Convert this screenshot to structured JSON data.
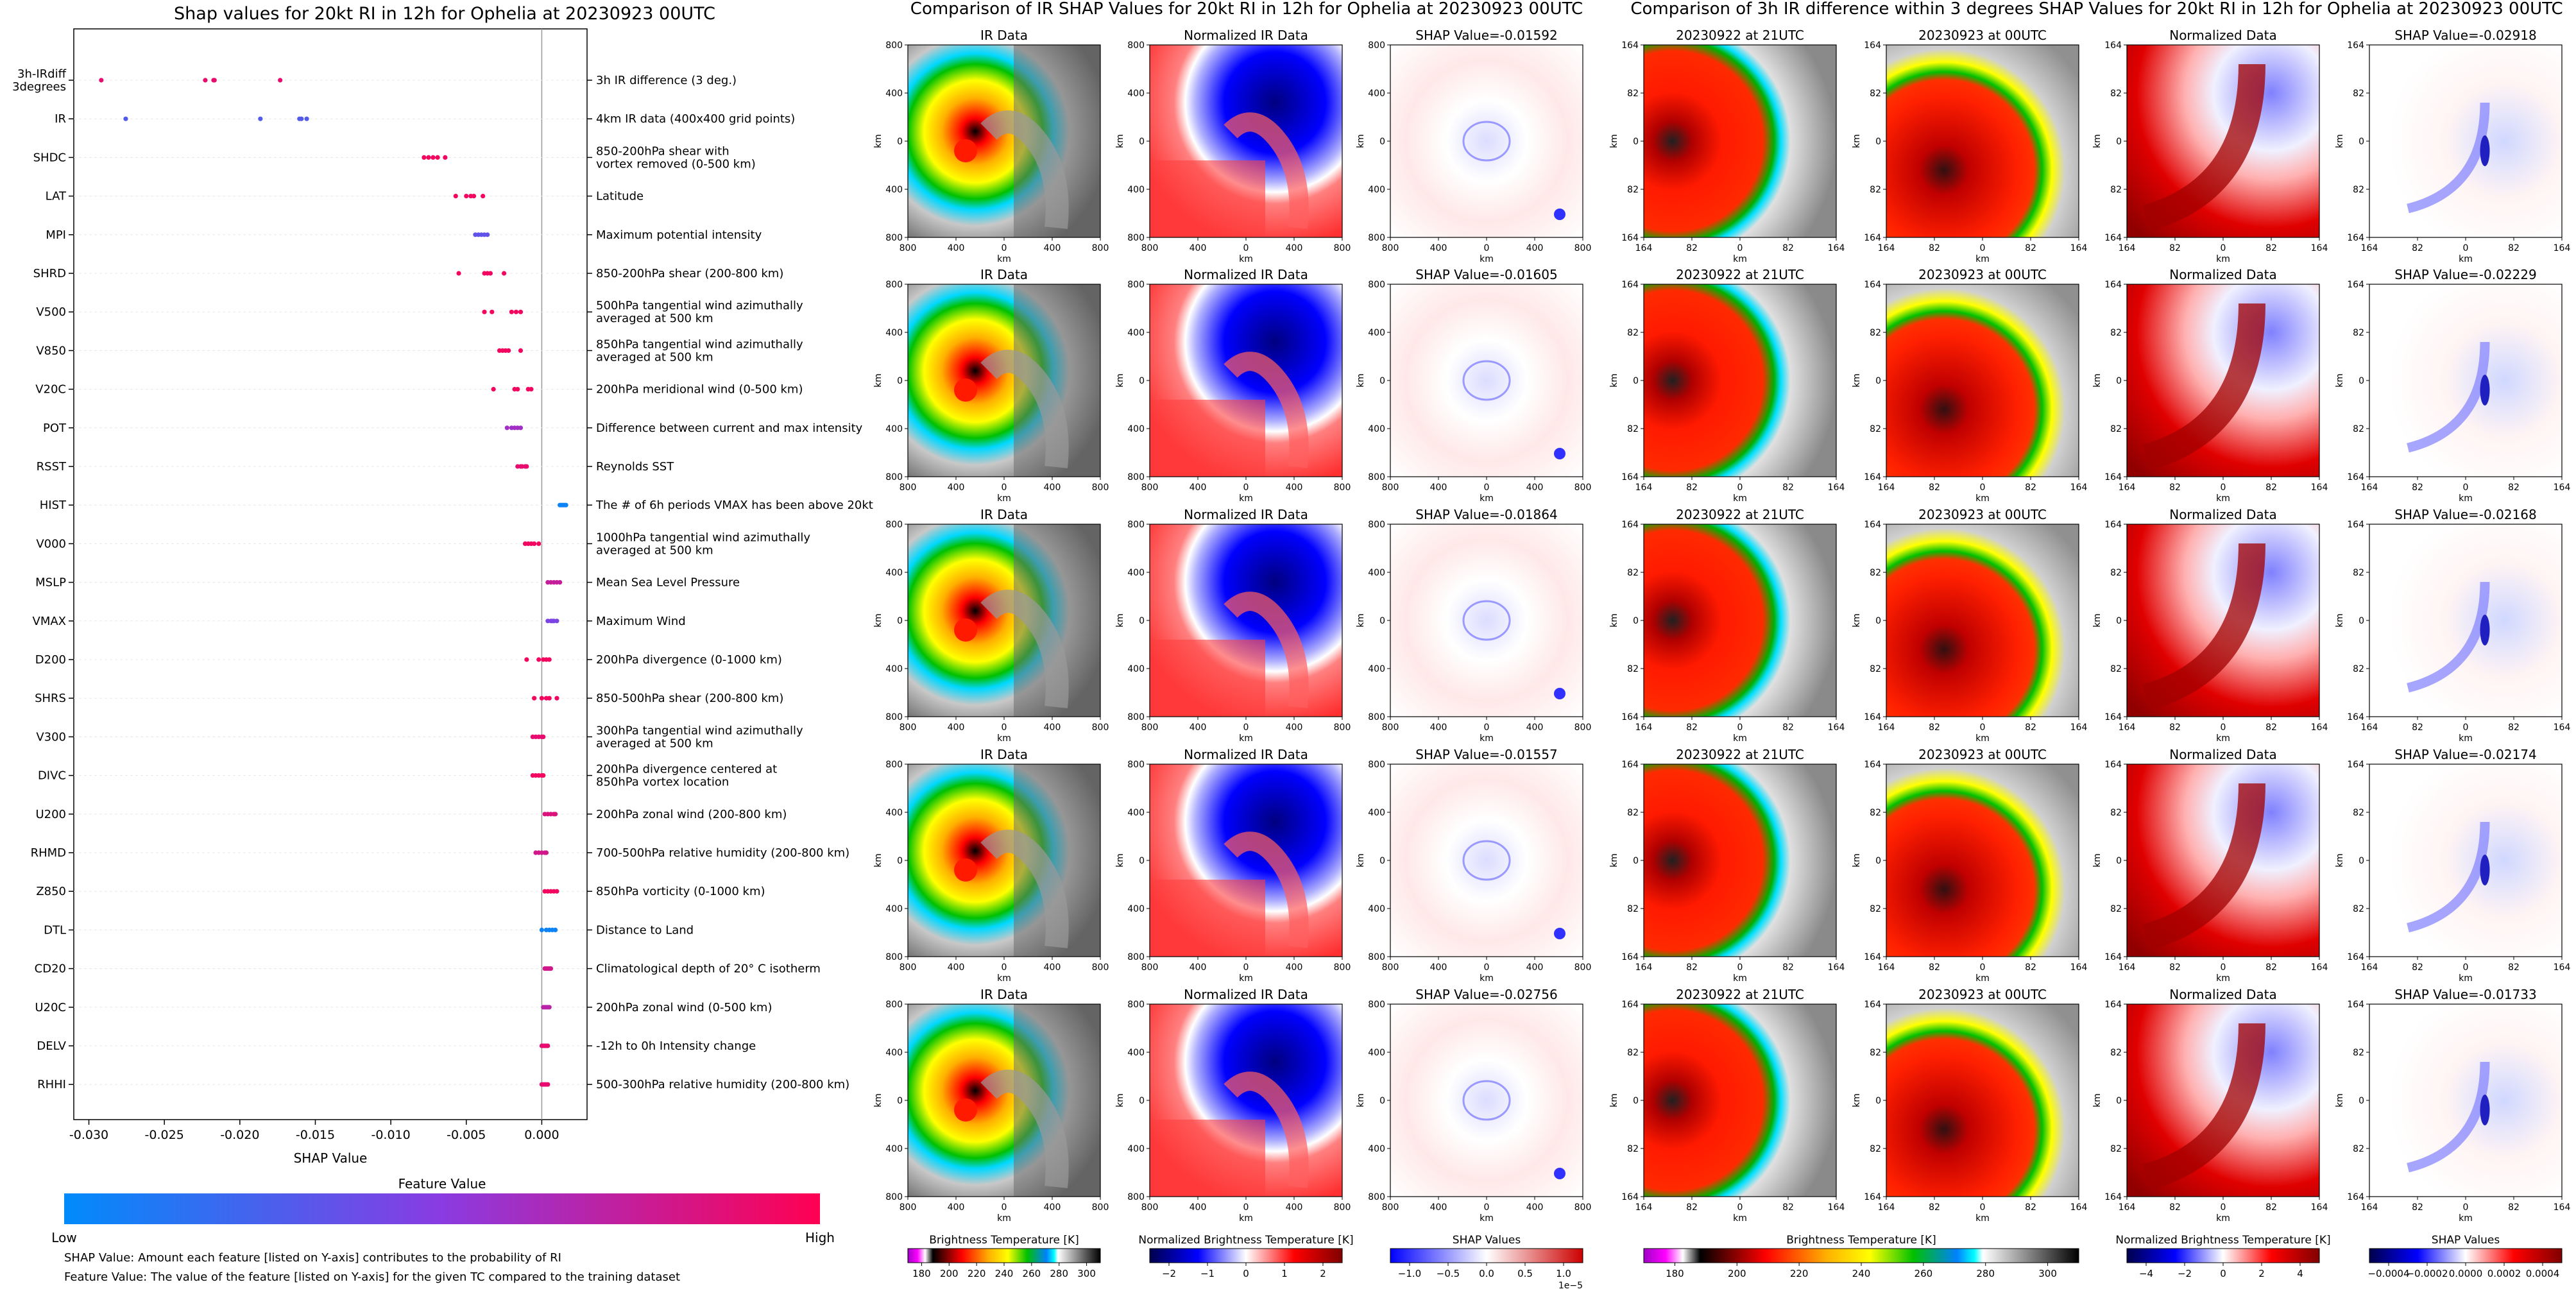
{
  "left_panel": {
    "title": "Shap values for 20kt RI in 12h for Ophelia at 20230923 00UTC",
    "xlabel": "SHAP Value",
    "xticks": [
      "-0.030",
      "-0.025",
      "-0.020",
      "-0.015",
      "-0.010",
      "-0.005",
      "0.000"
    ],
    "colorbar_title": "Feature Value",
    "colorbar_low": "Low",
    "colorbar_high": "High",
    "note1": "SHAP Value: Amount each feature [listed on Y-axis] contributes to the probability of RI",
    "note2": "Feature Value: The value of the feature [listed on Y-axis] for the given TC compared to the training dataset"
  },
  "mid_panel": {
    "title": "Comparison of IR SHAP Values for 20kt RI in 12h for Ophelia at 20230923 00UTC",
    "col_titles": [
      "IR Data",
      "Normalized IR Data"
    ],
    "shap_titles": [
      "SHAP Value=-0.01592",
      "SHAP Value=-0.01605",
      "SHAP Value=-0.01864",
      "SHAP Value=-0.01557",
      "SHAP Value=-0.02756"
    ],
    "xticks": [
      "800",
      "400",
      "0",
      "400",
      "800"
    ],
    "yticks": [
      "800",
      "400",
      "0",
      "400",
      "800"
    ],
    "axis_label": "km",
    "cbar1_label": "Brightness Temperature [K]",
    "cbar1_ticks": [
      "180",
      "200",
      "220",
      "240",
      "260",
      "280",
      "300"
    ],
    "cbar2_label": "Normalized Brightness Temperature [K]",
    "cbar2_ticks": [
      "−2",
      "−1",
      "0",
      "1",
      "2"
    ],
    "cbar3_label": "SHAP Values",
    "cbar3_ticks": [
      "−1.0",
      "−0.5",
      "0.0",
      "0.5",
      "1.0"
    ],
    "cbar3_exp": "1e−5"
  },
  "right_panel": {
    "title": "Comparison of 3h IR difference within 3 degrees SHAP Values for 20kt RI in 12h for Ophelia at 20230923 00UTC",
    "col_titles": [
      "20230922 at 21UTC",
      "20230923 at 00UTC",
      "Normalized Data"
    ],
    "shap_titles": [
      "SHAP Value=-0.02918",
      "SHAP Value=-0.02229",
      "SHAP Value=-0.02168",
      "SHAP Value=-0.02174",
      "SHAP Value=-0.01733"
    ],
    "xticks": [
      "164",
      "82",
      "0",
      "82",
      "164"
    ],
    "yticks": [
      "164",
      "82",
      "0",
      "82",
      "164"
    ],
    "axis_label": "km",
    "cbar1_label": "Brightness Temperature [K]",
    "cbar1_ticks": [
      "180",
      "200",
      "220",
      "240",
      "260",
      "280",
      "300"
    ],
    "cbar2_label": "Normalized Brightness Temperature [K]",
    "cbar2_ticks": [
      "−4",
      "−2",
      "0",
      "2",
      "4"
    ],
    "cbar3_label": "SHAP Values",
    "cbar3_ticks": [
      "−0.0004",
      "−0.0002",
      "0.0000",
      "0.0002",
      "0.0004"
    ]
  },
  "chart_data": [
    {
      "type": "scatter",
      "title": "Shap values for 20kt RI in 12h for Ophelia at 20230923 00UTC",
      "xlabel": "SHAP Value",
      "xlim": [
        -0.031,
        0.003
      ],
      "colors": {
        "low": "#008bfb",
        "high": "#ff0052"
      },
      "features": [
        {
          "name": "3h-IRdiff\n3degrees",
          "desc": "3h IR difference (3 deg.)",
          "values": [
            -0.02918,
            -0.02229,
            -0.02168,
            -0.02174,
            -0.01733
          ],
          "fv": [
            0.9,
            0.9,
            0.9,
            0.9,
            0.9
          ]
        },
        {
          "name": "IR",
          "desc": "4km IR data (400x400 grid points)",
          "values": [
            -0.02756,
            -0.01864,
            -0.01605,
            -0.01592,
            -0.01557
          ],
          "fv": [
            0.3,
            0.3,
            0.3,
            0.3,
            0.3
          ]
        },
        {
          "name": "SHDC",
          "desc": "850-200hPa shear with\nvortex removed (0-500 km)",
          "values": [
            -0.0078,
            -0.0075,
            -0.0072,
            -0.0069,
            -0.0064
          ],
          "fv": [
            0.95,
            0.95,
            0.95,
            0.95,
            0.95
          ]
        },
        {
          "name": "LAT",
          "desc": "Latitude",
          "values": [
            -0.0057,
            -0.005,
            -0.0047,
            -0.0045,
            -0.0039
          ],
          "fv": [
            0.95,
            0.95,
            0.95,
            0.95,
            0.95
          ]
        },
        {
          "name": "MPI",
          "desc": "Maximum potential intensity",
          "values": [
            -0.0044,
            -0.0042,
            -0.004,
            -0.0038,
            -0.0036
          ],
          "fv": [
            0.35,
            0.35,
            0.35,
            0.35,
            0.35
          ]
        },
        {
          "name": "SHRD",
          "desc": "850-200hPa shear (200-800 km)",
          "values": [
            -0.0055,
            -0.0038,
            -0.0036,
            -0.0034,
            -0.0025
          ],
          "fv": [
            0.95,
            0.95,
            0.95,
            0.95,
            0.95
          ]
        },
        {
          "name": "V500",
          "desc": "500hPa tangential wind azimuthally\naveraged at 500 km",
          "values": [
            -0.0038,
            -0.0033,
            -0.002,
            -0.0017,
            -0.0014
          ],
          "fv": [
            0.95,
            0.95,
            0.95,
            0.95,
            0.95
          ]
        },
        {
          "name": "V850",
          "desc": "850hPa tangential wind azimuthally\naveraged at 500 km",
          "values": [
            -0.0028,
            -0.0026,
            -0.0024,
            -0.0022,
            -0.0014
          ],
          "fv": [
            0.95,
            0.95,
            0.95,
            0.95,
            0.95
          ]
        },
        {
          "name": "V20C",
          "desc": "200hPa meridional wind (0-500 km)",
          "values": [
            -0.0032,
            -0.0018,
            -0.0016,
            -0.0009,
            -0.0007
          ],
          "fv": [
            0.95,
            0.95,
            0.95,
            0.95,
            0.95
          ]
        },
        {
          "name": "POT",
          "desc": "Difference between current and max intensity",
          "values": [
            -0.0023,
            -0.002,
            -0.0018,
            -0.0016,
            -0.0014
          ],
          "fv": [
            0.6,
            0.6,
            0.6,
            0.6,
            0.6
          ]
        },
        {
          "name": "RSST",
          "desc": "Reynolds SST",
          "values": [
            -0.0016,
            -0.0014,
            -0.0013,
            -0.0011,
            -0.001
          ],
          "fv": [
            0.9,
            0.9,
            0.9,
            0.9,
            0.9
          ]
        },
        {
          "name": "HIST",
          "desc": "The # of 6h periods VMAX has been above 20kt",
          "values": [
            0.0012,
            0.0013,
            0.0014,
            0.0015,
            0.0016
          ],
          "fv": [
            0.05,
            0.05,
            0.05,
            0.05,
            0.05
          ]
        },
        {
          "name": "V000",
          "desc": "1000hPa tangential wind azimuthally\naveraged at 500 km",
          "values": [
            -0.0011,
            -0.0009,
            -0.0007,
            -0.0005,
            -0.0002
          ],
          "fv": [
            0.95,
            0.95,
            0.95,
            0.95,
            0.95
          ]
        },
        {
          "name": "MSLP",
          "desc": "Mean Sea Level Pressure",
          "values": [
            0.0004,
            0.0006,
            0.0008,
            0.001,
            0.0012
          ],
          "fv": [
            0.75,
            0.75,
            0.75,
            0.75,
            0.75
          ]
        },
        {
          "name": "VMAX",
          "desc": "Maximum Wind",
          "values": [
            0.0004,
            0.0006,
            0.0007,
            0.0008,
            0.001
          ],
          "fv": [
            0.45,
            0.45,
            0.45,
            0.45,
            0.45
          ]
        },
        {
          "name": "D200",
          "desc": "200hPa divergence (0-1000 km)",
          "values": [
            -0.001,
            -0.0002,
            0.0001,
            0.0003,
            0.0005
          ],
          "fv": [
            0.95,
            0.95,
            0.95,
            0.95,
            0.95
          ]
        },
        {
          "name": "SHRS",
          "desc": "850-500hPa shear (200-800 km)",
          "values": [
            -0.0005,
            0.0,
            0.0003,
            0.0005,
            0.001
          ],
          "fv": [
            0.95,
            0.95,
            0.95,
            0.95,
            0.95
          ]
        },
        {
          "name": "V300",
          "desc": "300hPa tangential wind azimuthally\naveraged at 500 km",
          "values": [
            -0.0006,
            -0.0004,
            -0.0002,
            0.0,
            0.0001
          ],
          "fv": [
            0.9,
            0.9,
            0.9,
            0.9,
            0.9
          ]
        },
        {
          "name": "DIVC",
          "desc": "200hPa divergence centered at\n850hPa vortex location",
          "values": [
            -0.0006,
            -0.0004,
            -0.0002,
            0.0,
            0.0001
          ],
          "fv": [
            0.95,
            0.95,
            0.95,
            0.95,
            0.95
          ]
        },
        {
          "name": "U200",
          "desc": "200hPa zonal wind (200-800 km)",
          "values": [
            0.0002,
            0.0004,
            0.0006,
            0.0008,
            0.0009
          ],
          "fv": [
            0.85,
            0.85,
            0.85,
            0.85,
            0.85
          ]
        },
        {
          "name": "RHMD",
          "desc": "700-500hPa relative humidity (200-800 km)",
          "values": [
            -0.0004,
            -0.0002,
            0.0,
            0.0002,
            0.0003
          ],
          "fv": [
            0.8,
            0.8,
            0.8,
            0.8,
            0.8
          ]
        },
        {
          "name": "Z850",
          "desc": "850hPa vorticity (0-1000 km)",
          "values": [
            0.0002,
            0.0004,
            0.0006,
            0.0008,
            0.001
          ],
          "fv": [
            0.95,
            0.95,
            0.95,
            0.95,
            0.95
          ]
        },
        {
          "name": "DTL",
          "desc": "Distance to Land",
          "values": [
            0.0,
            0.0003,
            0.0005,
            0.0007,
            0.0009
          ],
          "fv": [
            0.05,
            0.05,
            0.05,
            0.05,
            0.05
          ]
        },
        {
          "name": "CD20",
          "desc": "Climatological depth of 20° C isotherm",
          "values": [
            0.0002,
            0.0003,
            0.0004,
            0.0005,
            0.0006
          ],
          "fv": [
            0.8,
            0.8,
            0.8,
            0.8,
            0.8
          ]
        },
        {
          "name": "U20C",
          "desc": "200hPa zonal wind (0-500 km)",
          "values": [
            0.0001,
            0.0002,
            0.0003,
            0.0004,
            0.0005
          ],
          "fv": [
            0.7,
            0.7,
            0.7,
            0.7,
            0.7
          ]
        },
        {
          "name": "DELV",
          "desc": "-12h to 0h Intensity change",
          "values": [
            0.0,
            0.0001,
            0.0002,
            0.0003,
            0.0004
          ],
          "fv": [
            0.9,
            0.9,
            0.9,
            0.9,
            0.9
          ]
        },
        {
          "name": "RHHI",
          "desc": "500-300hPa relative humidity (200-800 km)",
          "values": [
            0.0,
            0.0001,
            0.0002,
            0.0003,
            0.0004
          ],
          "fv": [
            0.9,
            0.9,
            0.9,
            0.9,
            0.9
          ]
        }
      ]
    }
  ]
}
